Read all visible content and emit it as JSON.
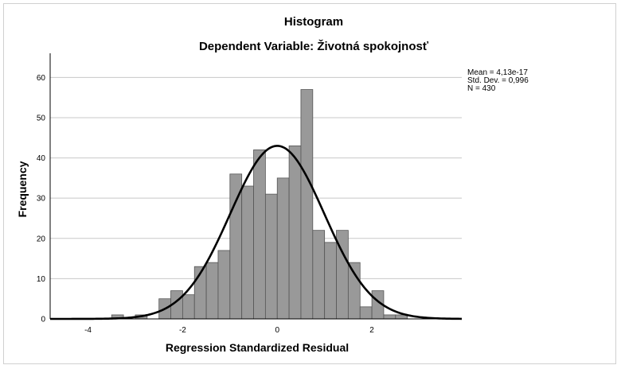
{
  "chart_data": {
    "type": "bar",
    "title": "Histogram",
    "subtitle": "Dependent Variable: Životná spokojnosť",
    "xlabel": "Regression Standardized Residual",
    "ylabel": "Frequency",
    "xlim": [
      -4.8,
      3.9
    ],
    "ylim": [
      0,
      66
    ],
    "x_ticks": [
      -4,
      -2,
      0,
      2
    ],
    "x_tick_labels": [
      "-4",
      "-2",
      "0",
      "2"
    ],
    "y_ticks": [
      0,
      10,
      20,
      30,
      40,
      50,
      60
    ],
    "y_tick_labels": [
      "0",
      "10",
      "20",
      "30",
      "40",
      "50",
      "60"
    ],
    "grid": true,
    "bin_width": 0.25,
    "bins": [
      {
        "x0": -3.5,
        "value": 1
      },
      {
        "x0": -3.25,
        "value": 0
      },
      {
        "x0": -3.0,
        "value": 1
      },
      {
        "x0": -2.75,
        "value": 0
      },
      {
        "x0": -2.5,
        "value": 5
      },
      {
        "x0": -2.25,
        "value": 7
      },
      {
        "x0": -2.0,
        "value": 6
      },
      {
        "x0": -1.75,
        "value": 13
      },
      {
        "x0": -1.5,
        "value": 14
      },
      {
        "x0": -1.25,
        "value": 17
      },
      {
        "x0": -1.0,
        "value": 36
      },
      {
        "x0": -0.75,
        "value": 33
      },
      {
        "x0": -0.5,
        "value": 42
      },
      {
        "x0": -0.25,
        "value": 31
      },
      {
        "x0": 0.0,
        "value": 35
      },
      {
        "x0": 0.25,
        "value": 43
      },
      {
        "x0": 0.5,
        "value": 57
      },
      {
        "x0": 0.75,
        "value": 22
      },
      {
        "x0": 1.0,
        "value": 19
      },
      {
        "x0": 1.25,
        "value": 22
      },
      {
        "x0": 1.5,
        "value": 14
      },
      {
        "x0": 1.75,
        "value": 3
      },
      {
        "x0": 2.0,
        "value": 7
      },
      {
        "x0": 2.25,
        "value": 1
      },
      {
        "x0": 2.5,
        "value": 1
      }
    ],
    "normal_curve": {
      "mean": 0,
      "std_dev": 0.996,
      "n": 430,
      "peak": 43
    },
    "stats": [
      "Mean = 4,13e-17",
      "Std. Dev. = 0,996",
      "N = 430"
    ],
    "colors": {
      "bar_fill": "#999999",
      "bar_stroke": "#555555",
      "curve": "#000000",
      "grid": "#c8c8c8",
      "axis": "#000000"
    }
  }
}
